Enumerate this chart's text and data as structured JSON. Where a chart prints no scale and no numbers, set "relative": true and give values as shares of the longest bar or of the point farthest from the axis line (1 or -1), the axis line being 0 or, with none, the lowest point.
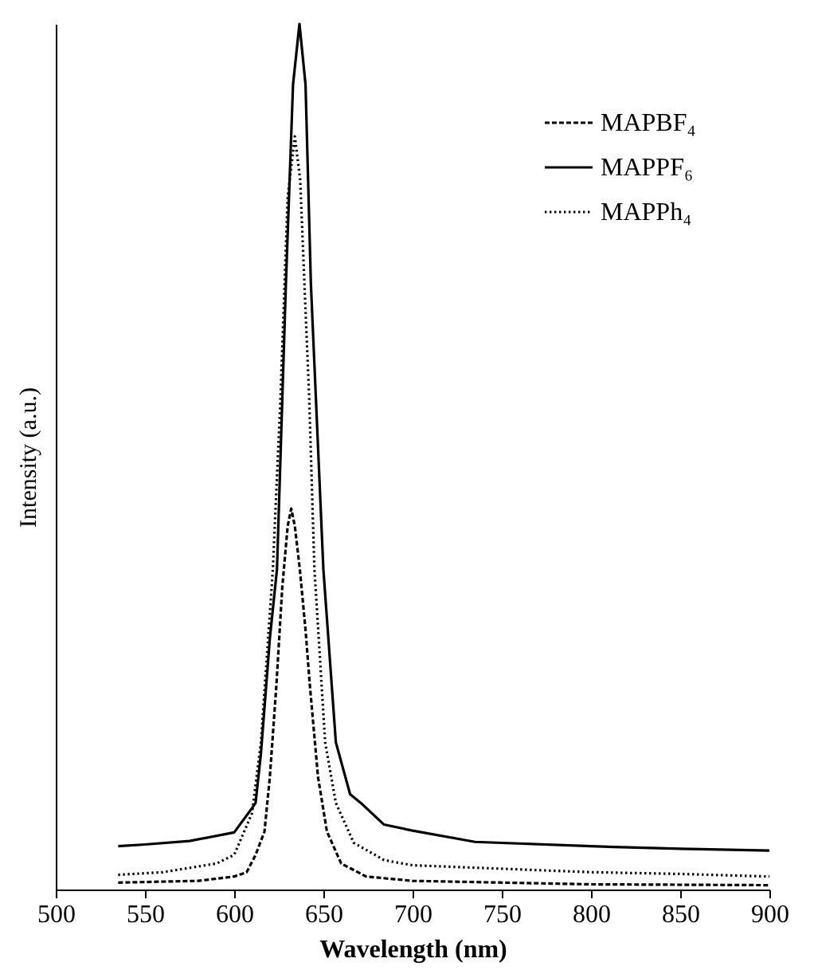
{
  "chart_data": {
    "type": "line",
    "xlabel": "Wavelength (nm)",
    "ylabel": "Intensity (a.u.)",
    "relative": true,
    "xlim": [
      500,
      900
    ],
    "xticks": [
      500,
      550,
      600,
      650,
      700,
      750,
      800,
      850,
      900
    ],
    "grid": false,
    "legend": "top right",
    "tick_labels": "x",
    "series": [
      {
        "name": "MAPBF₄",
        "color": "#000000",
        "line_style": "dashed",
        "x": [
          535,
          580,
          600,
          607,
          612,
          617,
          620,
          623.6,
          627,
          630,
          632,
          634,
          636.8,
          640,
          642.5,
          647,
          652,
          660,
          674,
          700,
          800,
          900
        ],
        "values": [
          0.008,
          0.01,
          0.015,
          0.02,
          0.04,
          0.067,
          0.13,
          0.234,
          0.35,
          0.42,
          0.44,
          0.42,
          0.37,
          0.3,
          0.234,
          0.13,
          0.067,
          0.03,
          0.015,
          0.01,
          0.006,
          0.005
        ]
      },
      {
        "name": "MAPPF₆",
        "color": "#000000",
        "line_style": "solid",
        "x": [
          535,
          550,
          575,
          600,
          610,
          612,
          615,
          620,
          624,
          629,
          633,
          636.6,
          640,
          643,
          650,
          657,
          665,
          671,
          684,
          700,
          735,
          800,
          850,
          900
        ],
        "values": [
          0.05,
          0.052,
          0.056,
          0.066,
          0.094,
          0.1,
          0.157,
          0.29,
          0.37,
          0.7,
          0.93,
          1,
          0.93,
          0.7,
          0.37,
          0.17,
          0.11,
          0.1,
          0.075,
          0.068,
          0.055,
          0.05,
          0.047,
          0.045
        ]
      },
      {
        "name": "MAPPh₄",
        "color": "#000000",
        "line_style": "dotted",
        "x": [
          535,
          560,
          590,
          600,
          610,
          615,
          621.7,
          626,
          630,
          634,
          637,
          642,
          645,
          651,
          657,
          667,
          684,
          700,
          750,
          800,
          850,
          900
        ],
        "values": [
          0.017,
          0.02,
          0.03,
          0.04,
          0.088,
          0.17,
          0.37,
          0.57,
          0.8,
          0.87,
          0.82,
          0.57,
          0.37,
          0.17,
          0.1,
          0.054,
          0.034,
          0.028,
          0.024,
          0.02,
          0.018,
          0.015
        ]
      }
    ]
  }
}
